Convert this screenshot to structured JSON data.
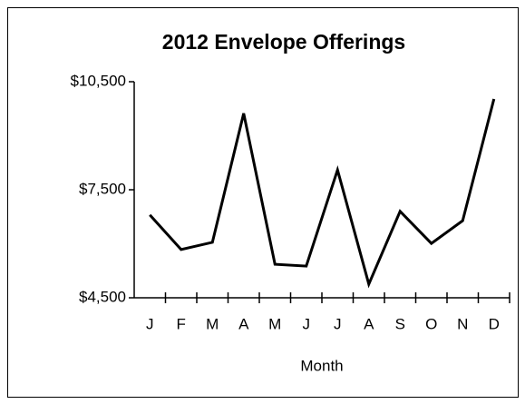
{
  "chart_data": {
    "type": "line",
    "title": "2012 Envelope Offerings",
    "x_label": "Month",
    "categories": [
      "J",
      "F",
      "M",
      "A",
      "M",
      "J",
      "J",
      "A",
      "S",
      "O",
      "N",
      "D"
    ],
    "series": [
      {
        "name": "Offerings",
        "color": "#000000",
        "values": [
          6800,
          5840,
          6040,
          9620,
          5430,
          5380,
          8050,
          4880,
          6900,
          6010,
          6640,
          10020
        ]
      }
    ],
    "ylim": [
      4500,
      10500
    ],
    "yticks": [
      {
        "value": 4500,
        "label": "$4,500"
      },
      {
        "value": 7500,
        "label": "$7,500"
      },
      {
        "value": 10500,
        "label": "$10,500"
      }
    ]
  }
}
